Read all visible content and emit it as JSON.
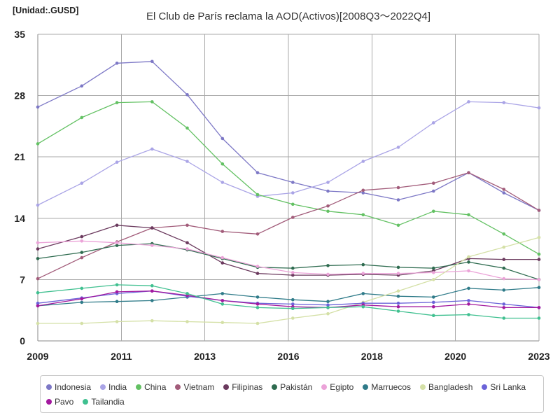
{
  "chart_data": {
    "type": "line",
    "title": "El Club de París reclama la AOD(Activos)[2008Q3～2022Q4]",
    "ylabel": "[Unidad:.GUSD]",
    "xlabel": "",
    "x": [
      2008.75,
      2010,
      2011,
      2012,
      2013,
      2014,
      2015,
      2016,
      2017,
      2018,
      2019,
      2020,
      2021,
      2022,
      2023
    ],
    "xlim": [
      2008.75,
      2023
    ],
    "xticks": [
      {
        "value": 2008.75,
        "label": "2009"
      },
      {
        "value": 2011.125,
        "label": "2011"
      },
      {
        "value": 2013.5,
        "label": "2013"
      },
      {
        "value": 2015.875,
        "label": "2016"
      },
      {
        "value": 2018.25,
        "label": "2018"
      },
      {
        "value": 2020.625,
        "label": "2020"
      },
      {
        "value": 2023,
        "label": "2023"
      }
    ],
    "ylim": [
      0,
      35
    ],
    "yticks": [
      0,
      7,
      14,
      21,
      28,
      35
    ],
    "grid": true,
    "legend": "bottom",
    "series": [
      {
        "name": "Indonesia",
        "color": "#7d78c6",
        "values": [
          26.7,
          29.1,
          31.7,
          31.9,
          28.1,
          23.1,
          19.2,
          18.1,
          17.1,
          16.9,
          16.1,
          17.1,
          19.2,
          16.9,
          14.9
        ]
      },
      {
        "name": "India",
        "color": "#aaa4e6",
        "values": [
          15.5,
          18.0,
          20.4,
          21.9,
          20.5,
          18.1,
          16.5,
          16.9,
          18.1,
          20.5,
          22.1,
          24.9,
          27.3,
          27.2,
          26.6
        ]
      },
      {
        "name": "China",
        "color": "#63c163",
        "values": [
          22.5,
          25.5,
          27.2,
          27.3,
          24.3,
          20.2,
          16.7,
          15.6,
          14.8,
          14.4,
          13.2,
          14.8,
          14.4,
          12.2,
          9.9
        ]
      },
      {
        "name": "Vietnam",
        "color": "#a25c7a",
        "values": [
          7.1,
          9.5,
          11.3,
          12.9,
          13.2,
          12.5,
          12.2,
          14.1,
          15.4,
          17.2,
          17.5,
          18.0,
          19.2,
          17.3,
          14.9
        ]
      },
      {
        "name": "Filipinas",
        "color": "#6b3a5e",
        "values": [
          10.5,
          11.9,
          13.2,
          12.9,
          11.2,
          8.9,
          7.7,
          7.5,
          7.5,
          7.6,
          7.5,
          8.0,
          9.4,
          9.3,
          9.3
        ]
      },
      {
        "name": "Pakistán",
        "color": "#2e6b4f",
        "values": [
          9.4,
          10.1,
          10.9,
          11.1,
          10.4,
          9.4,
          8.4,
          8.3,
          8.6,
          8.7,
          8.4,
          8.3,
          9.0,
          8.3,
          7.0
        ]
      },
      {
        "name": "Egipto",
        "color": "#eba3d8",
        "values": [
          11.2,
          11.4,
          11.2,
          10.9,
          10.5,
          9.5,
          8.5,
          7.8,
          7.6,
          7.7,
          7.7,
          7.8,
          8.0,
          7.1,
          7.0
        ]
      },
      {
        "name": "Marruecos",
        "color": "#2f7b89",
        "values": [
          4.0,
          4.4,
          4.5,
          4.6,
          5.0,
          5.4,
          5.0,
          4.7,
          4.5,
          5.4,
          5.1,
          5.0,
          6.0,
          5.8,
          6.1
        ]
      },
      {
        "name": "Bangladesh",
        "color": "#d4e0a6",
        "values": [
          2.0,
          2.0,
          2.2,
          2.3,
          2.2,
          2.1,
          2.0,
          2.6,
          3.1,
          4.4,
          5.7,
          7.0,
          9.6,
          10.7,
          11.8
        ]
      },
      {
        "name": "Sri Lanka",
        "color": "#6b63d8",
        "values": [
          4.3,
          4.9,
          5.4,
          5.7,
          5.1,
          4.6,
          4.3,
          4.2,
          4.1,
          4.3,
          4.3,
          4.4,
          4.6,
          4.2,
          3.8
        ]
      },
      {
        "name": "Pavo",
        "color": "#a3199f",
        "values": [
          4.0,
          4.8,
          5.6,
          5.7,
          5.2,
          4.6,
          4.2,
          3.9,
          3.8,
          4.1,
          3.9,
          3.9,
          4.2,
          3.8,
          3.8
        ]
      },
      {
        "name": "Tailandia",
        "color": "#40c090",
        "values": [
          5.5,
          6.0,
          6.4,
          6.3,
          5.4,
          4.2,
          3.8,
          3.7,
          3.8,
          3.9,
          3.4,
          2.9,
          3.0,
          2.6,
          2.6
        ]
      }
    ]
  }
}
